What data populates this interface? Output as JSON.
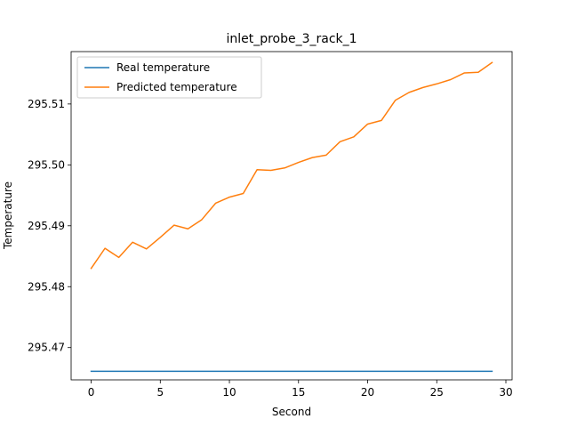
{
  "chart_data": {
    "type": "line",
    "title": "inlet_probe_3_rack_1",
    "xlabel": "Second",
    "ylabel": "Temperature",
    "xlim": [
      -1.45,
      30.45
    ],
    "ylim": [
      295.4647,
      295.5186
    ],
    "xticks": [
      0,
      5,
      10,
      15,
      20,
      25,
      30
    ],
    "xtick_labels": [
      "0",
      "5",
      "10",
      "15",
      "20",
      "25",
      "30"
    ],
    "yticks": [
      295.47,
      295.48,
      295.49,
      295.5,
      295.51
    ],
    "ytick_labels": [
      "295.47",
      "295.48",
      "295.49",
      "295.50",
      "295.51"
    ],
    "grid": false,
    "legend_position": "top-left",
    "x": [
      0,
      1,
      2,
      3,
      4,
      5,
      6,
      7,
      8,
      9,
      10,
      11,
      12,
      13,
      14,
      15,
      16,
      17,
      18,
      19,
      20,
      21,
      22,
      23,
      24,
      25,
      26,
      27,
      28,
      29
    ],
    "series": [
      {
        "name": "Real temperature",
        "color": "#1f77b4",
        "values": [
          295.4661,
          295.4661,
          295.4661,
          295.4661,
          295.4661,
          295.4661,
          295.4661,
          295.4661,
          295.4661,
          295.4661,
          295.4661,
          295.4661,
          295.4661,
          295.4661,
          295.4661,
          295.4661,
          295.4661,
          295.4661,
          295.4661,
          295.4661,
          295.4661,
          295.4661,
          295.4661,
          295.4661,
          295.4661,
          295.4661,
          295.4661,
          295.4661,
          295.4661,
          295.4661
        ]
      },
      {
        "name": "Predicted temperature",
        "color": "#ff7f0e",
        "values": [
          295.483,
          295.4863,
          295.4848,
          295.4873,
          295.4862,
          295.4881,
          295.4901,
          295.4895,
          295.491,
          295.4937,
          295.4947,
          295.4953,
          295.4992,
          295.4991,
          295.4995,
          295.5004,
          295.5012,
          295.5016,
          295.5038,
          295.5046,
          295.5067,
          295.5073,
          295.5106,
          295.5119,
          295.5127,
          295.5133,
          295.514,
          295.5151,
          295.5152,
          295.5168
        ]
      }
    ]
  }
}
